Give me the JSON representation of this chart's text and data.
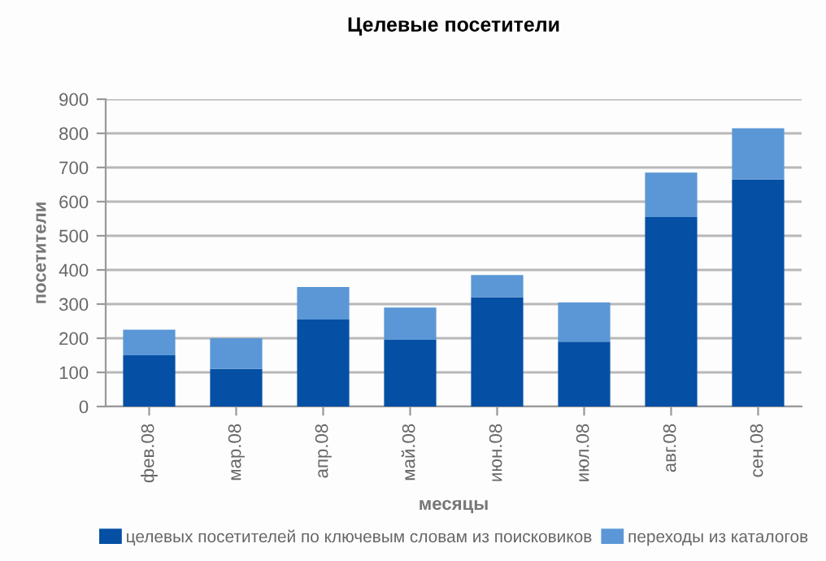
{
  "chart_data": {
    "type": "bar",
    "title": "Целевые посетители",
    "xlabel": "месяцы",
    "ylabel": "посетители",
    "categories": [
      "фев.08",
      "мар.08",
      "апр.08",
      "май.08",
      "июн.08",
      "июл.08",
      "авг.08",
      "сен.08"
    ],
    "stacked": true,
    "series": [
      {
        "name": "целевых посетителей по ключевым словам из поисковиков",
        "color": "#0550a4",
        "values": [
          150,
          110,
          255,
          195,
          320,
          190,
          555,
          665
        ]
      },
      {
        "name": "переходы из каталогов",
        "color": "#5b97d6",
        "values": [
          75,
          90,
          95,
          95,
          65,
          115,
          130,
          150
        ]
      }
    ],
    "ylim": [
      0,
      900
    ],
    "yticks": [
      0,
      100,
      200,
      300,
      400,
      500,
      600,
      700,
      800,
      900
    ],
    "grid": "y",
    "legend": "bottom"
  }
}
